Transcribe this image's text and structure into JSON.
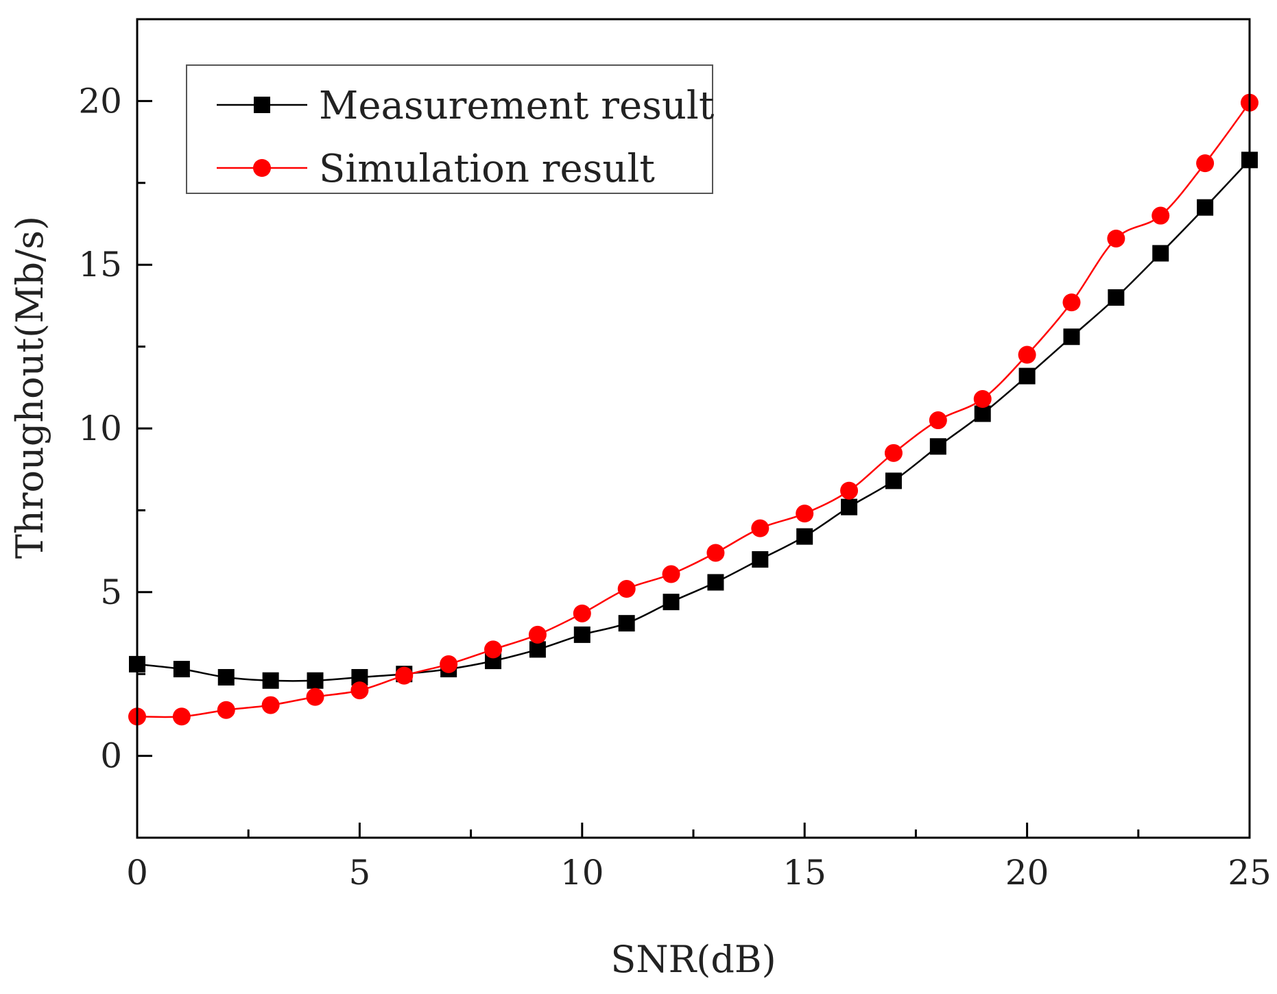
{
  "chart_data": {
    "type": "line",
    "title": "",
    "xlabel": "SNR(dB)",
    "ylabel": "Throughout(Mb/s)",
    "xlim": [
      0,
      25
    ],
    "ylim": [
      -2.5,
      22.5
    ],
    "xticks": [
      0,
      5,
      10,
      15,
      20,
      25
    ],
    "yticks": [
      0,
      5,
      10,
      15,
      20
    ],
    "grid": false,
    "legend_position": "top-left",
    "x": [
      0,
      1,
      2,
      3,
      4,
      5,
      6,
      7,
      8,
      9,
      10,
      11,
      12,
      13,
      14,
      15,
      16,
      17,
      18,
      19,
      20,
      21,
      22,
      23,
      24,
      25
    ],
    "series": [
      {
        "name": "Measurement result",
        "color": "#000000",
        "marker": "square",
        "values": [
          2.8,
          2.65,
          2.4,
          2.3,
          2.3,
          2.4,
          2.5,
          2.65,
          2.9,
          3.25,
          3.7,
          4.05,
          4.7,
          5.3,
          6.0,
          6.7,
          7.6,
          8.4,
          9.45,
          10.45,
          11.6,
          12.8,
          14.0,
          15.35,
          16.75,
          18.2
        ]
      },
      {
        "name": "Simulation result",
        "color": "#ff0000",
        "marker": "circle",
        "values": [
          1.2,
          1.2,
          1.4,
          1.55,
          1.8,
          2.0,
          2.45,
          2.8,
          3.25,
          3.7,
          4.35,
          5.1,
          5.55,
          6.2,
          6.95,
          7.4,
          8.1,
          9.25,
          10.25,
          10.9,
          12.25,
          13.85,
          15.8,
          16.5,
          18.1,
          19.95
        ]
      }
    ]
  }
}
